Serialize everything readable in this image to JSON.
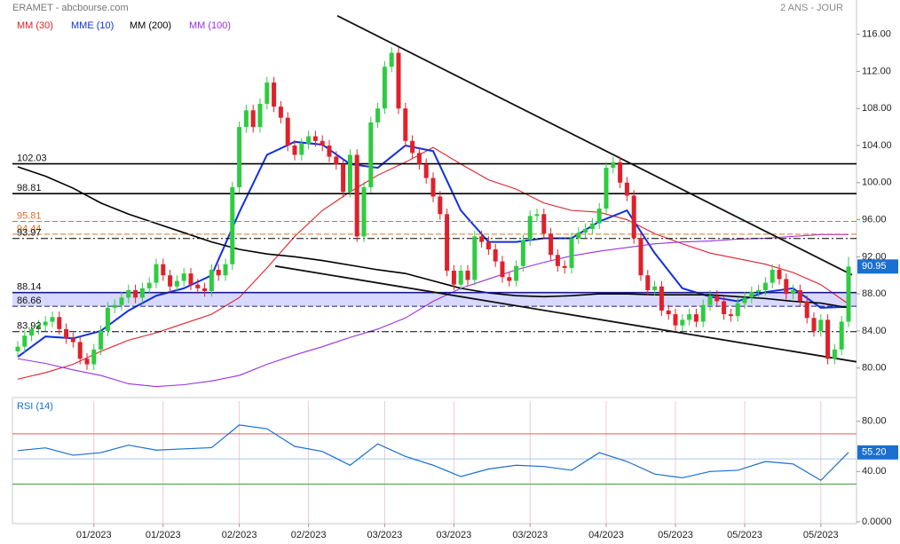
{
  "chart_data": {
    "type": "candlestick",
    "title": "ERAMET - abcbourse.com",
    "subtitle": "2 ANS - JOUR",
    "categories": [
      null,
      null,
      null,
      null,
      null,
      null,
      null,
      null,
      null,
      null,
      null,
      "01/2023",
      null,
      null,
      null,
      null,
      null,
      null,
      null,
      null,
      null,
      "01/2023",
      null,
      null,
      null,
      null,
      null,
      null,
      null,
      null,
      null,
      null,
      "02/2023",
      null,
      null,
      null,
      null,
      null,
      null,
      null,
      null,
      null,
      "02/2023",
      null,
      null,
      null,
      null,
      null,
      null,
      null,
      null,
      null,
      null,
      "03/2023",
      null,
      null,
      null,
      null,
      null,
      null,
      null,
      null,
      null,
      "03/2023",
      null,
      null,
      null,
      null,
      null,
      null,
      null,
      null,
      null,
      null,
      "03/2023",
      null,
      null,
      null,
      null,
      null,
      null,
      null,
      null,
      null,
      null,
      "04/2023",
      null,
      null,
      null,
      null,
      null,
      null,
      null,
      null,
      null,
      "05/2023",
      null,
      null,
      null,
      null,
      null,
      null,
      null,
      null,
      null,
      "05/2023",
      null,
      null,
      null,
      null,
      null,
      null,
      null,
      null,
      null,
      null,
      "05/2023",
      null,
      null,
      null,
      null
    ],
    "open": [
      81.8,
      82.3,
      83.5,
      84.2,
      84.6,
      85.0,
      85.5,
      84.2,
      83.2,
      82.8,
      81.0,
      80.4,
      82.0,
      84.0,
      86.5,
      86.8,
      87.6,
      88.4,
      87.6,
      88.6,
      89.2,
      91.2,
      90.0,
      88.8,
      89.4,
      90.2,
      89.0,
      88.6,
      88.3,
      90.6,
      90.0,
      91.2,
      99.5,
      106.0,
      107.8,
      106.0,
      108.5,
      110.8,
      108.2,
      107.0,
      104.0,
      103.0,
      104.2,
      105.0,
      104.5,
      104.0,
      102.8,
      102.0,
      99.0,
      103.0,
      94.2,
      99.5,
      106.5,
      108.0,
      112.5,
      114.0,
      108.0,
      104.5,
      103.2,
      102.0,
      100.5,
      98.5,
      96.6,
      90.5,
      89.0,
      90.5,
      89.5,
      94.2,
      93.6,
      92.8,
      91.5,
      89.8,
      89.4,
      91.0,
      93.8,
      96.4,
      96.6,
      94.5,
      92.2,
      91.0,
      90.8,
      94.0,
      94.6,
      95.0,
      95.6,
      97.2,
      101.6,
      102.2,
      100.0,
      98.6,
      94.0,
      90.0,
      88.4,
      88.8,
      86.2,
      85.8,
      84.6,
      85.2,
      85.8,
      85.0,
      86.8,
      87.8,
      87.2,
      85.8,
      85.6,
      87.0,
      87.6,
      88.2,
      88.4,
      89.2,
      90.6,
      89.6,
      88.0,
      88.4,
      87.2,
      85.4,
      84.0,
      85.2,
      81.0,
      82.0,
      85.0
    ],
    "high": [
      82.9,
      84.1,
      84.8,
      85.2,
      85.6,
      86.1,
      86.1,
      84.8,
      83.8,
      83.4,
      81.6,
      82.6,
      84.6,
      87.1,
      87.4,
      88.2,
      89.0,
      89.0,
      89.2,
      89.8,
      91.8,
      91.8,
      90.6,
      90.0,
      90.8,
      90.8,
      89.6,
      89.2,
      91.2,
      91.2,
      91.8,
      100.1,
      106.6,
      108.4,
      108.4,
      109.1,
      111.4,
      111.4,
      108.8,
      107.6,
      104.6,
      104.8,
      105.6,
      105.6,
      105.1,
      104.6,
      103.4,
      102.6,
      103.6,
      103.6,
      100.1,
      107.1,
      108.6,
      113.1,
      114.6,
      114.6,
      108.6,
      105.1,
      103.8,
      102.6,
      101.1,
      99.1,
      97.2,
      91.1,
      91.1,
      91.1,
      94.8,
      94.8,
      94.2,
      93.4,
      92.1,
      90.4,
      91.6,
      94.4,
      97.0,
      97.2,
      97.2,
      95.1,
      92.8,
      91.6,
      94.6,
      95.2,
      95.6,
      96.2,
      97.8,
      102.2,
      102.8,
      102.8,
      100.6,
      99.2,
      94.6,
      90.6,
      89.4,
      89.4,
      86.8,
      86.4,
      85.8,
      86.4,
      86.4,
      87.4,
      88.4,
      88.4,
      87.8,
      86.4,
      87.6,
      88.2,
      88.8,
      89.0,
      89.8,
      91.2,
      91.2,
      90.2,
      89.0,
      89.0,
      87.8,
      86.0,
      85.8,
      85.8,
      82.6,
      85.6,
      92.0
    ],
    "low": [
      81.2,
      81.7,
      82.9,
      83.6,
      84.0,
      84.4,
      83.6,
      82.6,
      82.2,
      80.4,
      79.8,
      79.8,
      81.4,
      83.4,
      85.9,
      86.2,
      87.0,
      87.0,
      87.0,
      88.0,
      88.6,
      89.4,
      88.2,
      88.2,
      88.8,
      88.4,
      88.0,
      87.7,
      87.7,
      89.4,
      89.4,
      90.6,
      98.9,
      105.4,
      105.4,
      105.4,
      107.9,
      107.6,
      106.4,
      103.4,
      102.4,
      102.4,
      103.6,
      103.9,
      103.4,
      102.2,
      101.4,
      98.4,
      98.4,
      93.6,
      93.6,
      98.9,
      105.9,
      107.4,
      111.9,
      107.4,
      103.9,
      102.6,
      101.4,
      99.9,
      97.9,
      96.0,
      89.9,
      88.4,
      88.4,
      88.9,
      88.9,
      93.0,
      92.2,
      90.9,
      89.2,
      88.8,
      88.8,
      90.4,
      93.2,
      95.8,
      93.9,
      91.6,
      90.4,
      90.2,
      90.2,
      93.4,
      94.0,
      94.4,
      95.0,
      96.6,
      101.0,
      99.4,
      98.0,
      93.4,
      89.4,
      87.8,
      87.8,
      85.6,
      85.2,
      84.0,
      84.0,
      84.6,
      84.4,
      84.4,
      86.2,
      86.6,
      85.2,
      85.0,
      85.0,
      86.4,
      87.0,
      87.6,
      87.8,
      88.6,
      89.0,
      87.4,
      87.4,
      86.6,
      84.8,
      83.4,
      83.4,
      80.4,
      80.4,
      81.4,
      84.4
    ],
    "close": [
      82.3,
      83.5,
      84.2,
      84.6,
      85.0,
      85.5,
      84.2,
      83.2,
      82.8,
      81.0,
      80.4,
      82.0,
      84.0,
      86.5,
      86.8,
      87.6,
      88.4,
      87.6,
      88.6,
      89.2,
      91.2,
      90.0,
      88.8,
      89.4,
      90.2,
      89.0,
      88.6,
      88.3,
      90.6,
      90.0,
      91.2,
      99.5,
      106.0,
      107.8,
      106.0,
      108.5,
      110.8,
      108.2,
      107.0,
      104.0,
      103.0,
      104.2,
      105.0,
      104.5,
      104.0,
      102.8,
      102.0,
      99.0,
      103.0,
      94.2,
      99.5,
      106.5,
      108.0,
      112.5,
      114.0,
      108.0,
      104.5,
      103.2,
      102.0,
      100.5,
      98.5,
      96.6,
      90.5,
      89.0,
      90.5,
      89.5,
      94.2,
      93.6,
      92.8,
      91.5,
      89.8,
      89.4,
      91.0,
      93.8,
      96.4,
      96.6,
      94.5,
      92.2,
      91.0,
      90.8,
      94.0,
      94.6,
      95.0,
      95.6,
      97.2,
      101.6,
      102.2,
      100.0,
      98.6,
      94.0,
      90.0,
      88.4,
      88.8,
      86.2,
      85.8,
      84.6,
      85.2,
      85.8,
      85.0,
      86.8,
      87.8,
      87.2,
      85.8,
      85.6,
      87.0,
      87.6,
      88.2,
      88.4,
      89.2,
      90.6,
      89.6,
      88.0,
      88.4,
      87.2,
      85.4,
      84.0,
      85.2,
      81.0,
      82.0,
      85.0,
      90.95
    ],
    "up_color": "#2ecc40",
    "down_color": "#e0202a",
    "last_label": "90.95",
    "ylim": [
      77.1,
      119.7
    ],
    "yticks": [
      {
        "value": 80,
        "label": "80.00"
      },
      {
        "value": 84,
        "label": "84.00"
      },
      {
        "value": 88,
        "label": "88.00"
      },
      {
        "value": 92,
        "label": "92.00"
      },
      {
        "value": 96,
        "label": "96.00"
      },
      {
        "value": 100,
        "label": "100.00"
      },
      {
        "value": 104,
        "label": "104.00"
      },
      {
        "value": 108,
        "label": "108.00"
      },
      {
        "value": 112,
        "label": "112.00"
      },
      {
        "value": 116,
        "label": "116.00"
      }
    ],
    "levels": [
      {
        "value": 102.03,
        "color": "#000000",
        "dash": "solid"
      },
      {
        "value": 98.81,
        "color": "#000000",
        "dash": "solid"
      },
      {
        "value": 95.81,
        "color": "#e07020",
        "dash": "dashed"
      },
      {
        "value": 94.44,
        "color": "#e07020",
        "dash": "dashed"
      },
      {
        "value": 93.97,
        "color": "#000000",
        "dash": "dashdot"
      },
      {
        "value": 88.14,
        "color": "#1a1a8c",
        "dash": "solid",
        "band": true
      },
      {
        "value": 86.66,
        "color": "#1a1a8c",
        "dash": "dashed",
        "band": true
      },
      {
        "value": 83.92,
        "color": "#000000",
        "dash": "dashdot"
      }
    ],
    "trendlines": [
      {
        "points": [
          [
            46.15,
            118.0
          ],
          [
            120.5,
            90.05
          ]
        ]
      },
      {
        "points": [
          [
            37.2,
            91.0
          ],
          [
            121.15,
            80.67
          ]
        ]
      }
    ],
    "series": [
      {
        "name": "MM (30)",
        "color": "#e0202a",
        "x": [
          0,
          4,
          8,
          12,
          16,
          20,
          24,
          28,
          32,
          36,
          40,
          44,
          48,
          52,
          56,
          60,
          64,
          68,
          72,
          76,
          80,
          84,
          88,
          92,
          96,
          100,
          104,
          108,
          112,
          116,
          120
        ],
        "values": [
          78.8,
          79.5,
          80.4,
          81.8,
          83.0,
          83.8,
          84.8,
          85.8,
          87.6,
          90.8,
          94.2,
          97.0,
          99.0,
          100.8,
          102.2,
          103.8,
          102.0,
          100.3,
          99.3,
          97.8,
          97.0,
          96.8,
          96.0,
          94.5,
          93.4,
          92.4,
          91.8,
          91.2,
          90.3,
          89.0,
          86.9
        ]
      },
      {
        "name": "MME (10)",
        "color": "#1030e0",
        "x": [
          0,
          4,
          8,
          12,
          16,
          20,
          24,
          28,
          32,
          36,
          40,
          44,
          48,
          52,
          56,
          60,
          64,
          68,
          72,
          76,
          80,
          84,
          88,
          92,
          96,
          100,
          104,
          108,
          112,
          116,
          120
        ],
        "values": [
          81.2,
          83.4,
          83.2,
          84.0,
          86.2,
          87.8,
          88.6,
          90.0,
          96.8,
          103.0,
          104.4,
          104.1,
          102.0,
          101.6,
          104.0,
          103.4,
          97.0,
          93.6,
          93.6,
          94.0,
          94.0,
          95.8,
          97.0,
          92.4,
          88.6,
          87.7,
          87.2,
          88.2,
          88.6,
          86.5,
          86.6
        ]
      },
      {
        "name": "MM (200)",
        "color": "#000000",
        "x": [
          0,
          4,
          8,
          12,
          16,
          20,
          24,
          28,
          32,
          36,
          40,
          44,
          48,
          52,
          56,
          60,
          64,
          68,
          72,
          76,
          80,
          84,
          88,
          92,
          96,
          100,
          104,
          108,
          112,
          116,
          120
        ],
        "values": [
          101.7,
          100.7,
          99.4,
          97.8,
          96.6,
          95.6,
          94.6,
          93.6,
          92.8,
          92.3,
          92.0,
          91.6,
          91.1,
          90.6,
          90.2,
          89.4,
          88.6,
          88.1,
          87.8,
          87.7,
          87.8,
          88.0,
          88.0,
          87.9,
          87.9,
          87.9,
          87.7,
          87.5,
          87.2,
          87.0,
          86.5
        ]
      },
      {
        "name": "MM (100)",
        "color": "#9b30e0",
        "x": [
          0,
          4,
          8,
          12,
          16,
          20,
          24,
          28,
          32,
          36,
          40,
          44,
          48,
          52,
          56,
          60,
          64,
          68,
          72,
          76,
          80,
          84,
          88,
          92,
          96,
          100,
          104,
          108,
          112,
          116,
          120
        ],
        "values": [
          81.0,
          80.5,
          79.8,
          79.2,
          78.3,
          78.0,
          78.2,
          78.6,
          79.2,
          80.4,
          81.4,
          82.3,
          83.3,
          84.2,
          85.4,
          87.2,
          88.6,
          89.6,
          90.6,
          91.4,
          92.1,
          92.6,
          93.0,
          93.4,
          93.6,
          93.7,
          93.9,
          94.0,
          94.2,
          94.4,
          94.4
        ]
      }
    ],
    "rsi": {
      "name": "RSI (14)",
      "color": "#1a6fd0",
      "x": [
        0,
        4,
        8,
        12,
        16,
        20,
        24,
        28,
        32,
        36,
        40,
        44,
        48,
        52,
        56,
        60,
        64,
        68,
        72,
        76,
        80,
        84,
        88,
        92,
        96,
        100,
        104,
        108,
        112,
        116,
        120
      ],
      "values": [
        56.6,
        58.8,
        53.0,
        55.0,
        61.0,
        57.0,
        58.0,
        59.0,
        77.0,
        74.0,
        60.0,
        56.0,
        45.0,
        62.0,
        52.0,
        45.0,
        36.0,
        42.0,
        45.0,
        44.0,
        41.0,
        55.0,
        48.0,
        38.0,
        35.0,
        40.0,
        41.0,
        48.0,
        46.0,
        33.0,
        55.2
      ],
      "last_label": "55.20",
      "ylim": [
        0,
        96
      ],
      "yticks": [
        {
          "value": 0,
          "label": "0.0000"
        },
        {
          "value": 40,
          "label": "40.00"
        },
        {
          "value": 80,
          "label": "80.00"
        }
      ],
      "lines": [
        {
          "value": 70,
          "color": "#e06060"
        },
        {
          "value": 50,
          "color": "#a8c8f0"
        },
        {
          "value": 30,
          "color": "#40a040"
        }
      ]
    }
  }
}
